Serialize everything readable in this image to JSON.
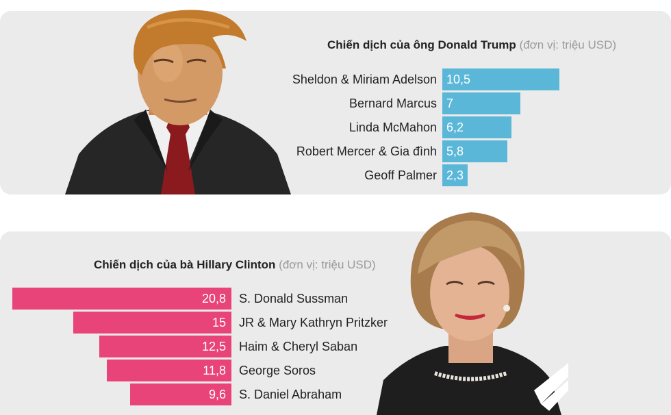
{
  "charts": [
    {
      "id": "trump",
      "title": "Chiến dịch của ông Donald Trump",
      "unit": "(đơn vị: triệu USD)"
    },
    {
      "id": "clinton",
      "title": "Chiến dịch của bà Hillary Clinton",
      "unit": "(đơn vị: triệu USD)"
    }
  ],
  "chart_data": [
    {
      "type": "bar",
      "orientation": "horizontal",
      "direction": "left-to-right",
      "title": "Chiến dịch của ông Donald Trump",
      "unit": "(đơn vị: triệu USD)",
      "categories": [
        "Sheldon & Miriam Adelson",
        "Bernard Marcus",
        "Linda McMahon",
        "Robert Mercer & Gia đình",
        "Geoff Palmer"
      ],
      "values": [
        10.5,
        7,
        6.2,
        5.8,
        2.3
      ],
      "value_labels": [
        "10,5",
        "7",
        "6,2",
        "5,8",
        "2,3"
      ],
      "color": "#5ab7d8"
    },
    {
      "type": "bar",
      "orientation": "horizontal",
      "direction": "right-to-left",
      "title": "Chiến dịch của bà Hillary Clinton",
      "unit": "(đơn vị: triệu USD)",
      "categories": [
        "S. Donald Sussman",
        "JR & Mary Kathryn Pritzker",
        "Haim & Cheryl Saban",
        "George Soros",
        "S. Daniel Abraham"
      ],
      "values": [
        20.8,
        15,
        12.5,
        11.8,
        9.6
      ],
      "value_labels": [
        "20,8",
        "15",
        "12,5",
        "11,8",
        "9,6"
      ],
      "color": "#e8447a"
    }
  ],
  "colors": {
    "panel_bg": "#ebebeb",
    "trump_bar": "#5ab7d8",
    "clinton_bar": "#e8447a",
    "unit_text": "#9a9a9a"
  }
}
